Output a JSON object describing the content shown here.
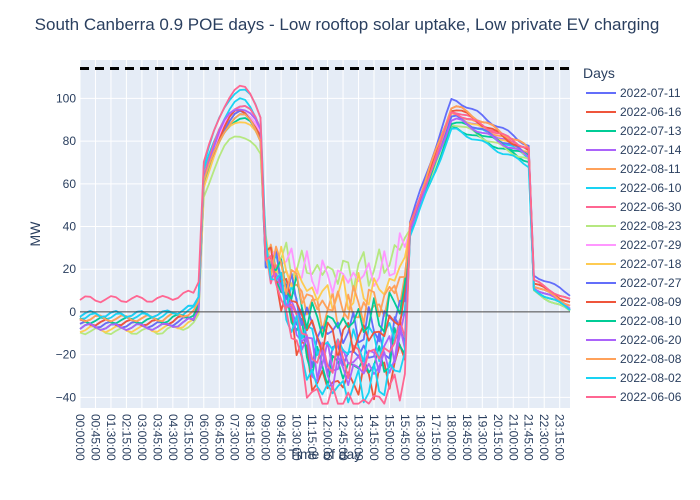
{
  "chart_data": {
    "type": "line",
    "title": "South Canberra 0.9 POE days - Low rooftop solar uptake, Low private EV charging",
    "xlabel": "Time of day",
    "ylabel": "MW",
    "ylim": [
      -45,
      118
    ],
    "y_ticks": [
      -40,
      -20,
      0,
      20,
      40,
      60,
      80,
      100
    ],
    "x_tick_labels": [
      "00:00:00",
      "00:45:00",
      "01:30:00",
      "02:15:00",
      "03:00:00",
      "03:45:00",
      "04:30:00",
      "05:15:00",
      "06:00:00",
      "06:45:00",
      "07:30:00",
      "08:15:00",
      "09:00:00",
      "09:45:00",
      "10:30:00",
      "11:15:00",
      "12:00:00",
      "12:45:00",
      "13:30:00",
      "14:15:00",
      "15:00:00",
      "15:45:00",
      "16:30:00",
      "17:15:00",
      "18:00:00",
      "18:45:00",
      "19:30:00",
      "20:15:00",
      "21:00:00",
      "21:45:00",
      "22:30:00",
      "23:15:00"
    ],
    "limit_line": {
      "value": 114,
      "style": "dash",
      "color": "#000000"
    },
    "zero_line": {
      "value": 0,
      "color": "#444444"
    },
    "legend_title": "Days",
    "legend_position": "right",
    "grid": true,
    "series": [
      {
        "name": "2022-07-11",
        "color": "#636efa",
        "base": -1,
        "am": 97,
        "mid": -14,
        "pm": 99,
        "eve": 77,
        "night": 10
      },
      {
        "name": "2022-06-16",
        "color": "#EF553B",
        "base": -5,
        "am": 95,
        "mid": -27,
        "pm": 96,
        "eve": 76,
        "night": 7
      },
      {
        "name": "2022-07-13",
        "color": "#00cc96",
        "base": -7,
        "am": 91,
        "mid": -20,
        "pm": 86,
        "eve": 70,
        "night": 2
      },
      {
        "name": "2022-07-14",
        "color": "#ab63fa",
        "base": -5,
        "am": 94,
        "mid": -17,
        "pm": 92,
        "eve": 74,
        "night": 5
      },
      {
        "name": "2022-08-11",
        "color": "#FFA15A",
        "base": -3,
        "am": 93,
        "mid": 6,
        "pm": 93,
        "eve": 74,
        "night": 6
      },
      {
        "name": "2022-06-10",
        "color": "#19d3f3",
        "base": -2,
        "am": 99,
        "mid": -10,
        "pm": 91,
        "eve": 72,
        "night": 4
      },
      {
        "name": "2022-06-30",
        "color": "#FF6692",
        "base": -6,
        "am": 97,
        "mid": -16,
        "pm": 94,
        "eve": 75,
        "night": 5
      },
      {
        "name": "2022-08-23",
        "color": "#B6E880",
        "base": -9,
        "am": 83,
        "mid": 25,
        "pm": 88,
        "eve": 70,
        "night": 2
      },
      {
        "name": "2022-07-29",
        "color": "#FF97FF",
        "base": -4,
        "am": 95,
        "mid": 22,
        "pm": 90,
        "eve": 72,
        "night": 4
      },
      {
        "name": "2022-07-18",
        "color": "#FECB52",
        "base": -8,
        "am": 90,
        "mid": 14,
        "pm": 92,
        "eve": 73,
        "night": 3
      },
      {
        "name": "2022-07-27",
        "color": "#636efa",
        "base": -6,
        "am": 93,
        "mid": -3,
        "pm": 91,
        "eve": 73,
        "night": 4
      },
      {
        "name": "2022-08-09",
        "color": "#EF553B",
        "base": -5,
        "am": 94,
        "mid": -6,
        "pm": 95,
        "eve": 74,
        "night": 6
      },
      {
        "name": "2022-08-10",
        "color": "#00cc96",
        "base": -4,
        "am": 92,
        "mid": 1,
        "pm": 89,
        "eve": 72,
        "night": 3
      },
      {
        "name": "2022-06-20",
        "color": "#ab63fa",
        "base": -7,
        "am": 96,
        "mid": -22,
        "pm": 90,
        "eve": 72,
        "night": 4
      },
      {
        "name": "2022-08-08",
        "color": "#FFA15A",
        "base": -3,
        "am": 92,
        "mid": 9,
        "pm": 96,
        "eve": 76,
        "night": 5
      },
      {
        "name": "2022-08-02",
        "color": "#19d3f3",
        "base": -1,
        "am": 104,
        "mid": -30,
        "pm": 85,
        "eve": 68,
        "night": 3
      },
      {
        "name": "2022-06-06",
        "color": "#FF6692",
        "base": 6,
        "am": 105,
        "mid": -38,
        "pm": 93,
        "eve": 76,
        "night": 7
      }
    ]
  }
}
